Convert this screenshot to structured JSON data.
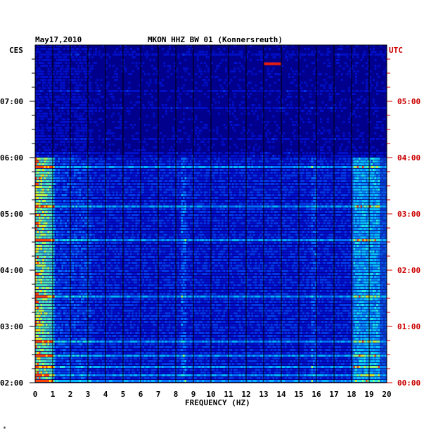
{
  "header": {
    "date": "May17,2010",
    "station": "MKON HHZ BW 01 (Konnersreuth)",
    "left_tz": "CES",
    "right_tz": "UTC"
  },
  "footer_mark": "*",
  "colors": {
    "background": "#00008c",
    "grid": "#000000",
    "utc_label": "#cc0000"
  },
  "chart_data": {
    "type": "heatmap",
    "title": "MKON HHZ BW 01 (Konnersreuth)",
    "xlabel": "FREQUENCY (HZ)",
    "xlim": [
      0,
      20
    ],
    "x_ticks": [
      "0",
      "1",
      "2",
      "3",
      "4",
      "5",
      "6",
      "7",
      "8",
      "9",
      "10",
      "11",
      "12",
      "13",
      "14",
      "15",
      "16",
      "17",
      "18",
      "19",
      "20"
    ],
    "left_ticks": [
      "02:00",
      "03:00",
      "04:00",
      "05:00",
      "06:00",
      "07:00"
    ],
    "right_ticks": [
      "00:00",
      "01:00",
      "02:00",
      "03:00",
      "04:00",
      "05:00"
    ],
    "time_range_ces": [
      "02:00",
      "07:45"
    ],
    "gap_start_ces": "06:00",
    "notable_features": [
      {
        "freq_hz": [
          0,
          1
        ],
        "time_ces": [
          "02:00",
          "06:00"
        ],
        "intensity": "high"
      },
      {
        "freq_hz": [
          18,
          20
        ],
        "time_ces": [
          "02:00",
          "06:00"
        ],
        "intensity": "moderate"
      },
      {
        "freq_hz": [
          13,
          14
        ],
        "time_ces": "07:40",
        "intensity": "peak"
      }
    ]
  }
}
